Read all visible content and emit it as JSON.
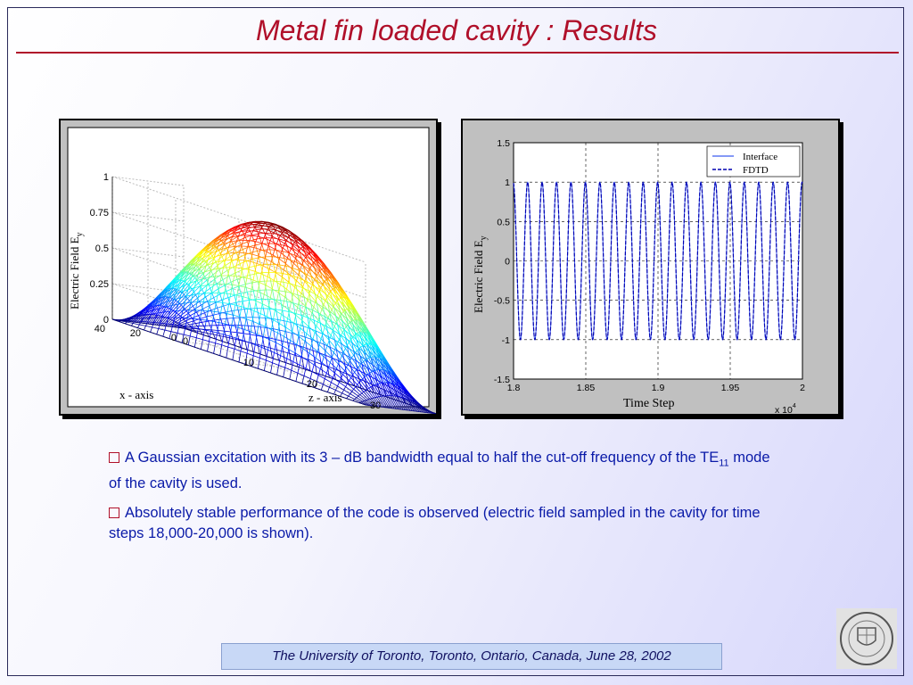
{
  "slide": {
    "title": "Metal fin loaded cavity : Results",
    "bullets": [
      {
        "text_before": "A Gaussian excitation with its 3 – dB bandwidth equal to half the cut-off frequency of the TE",
        "subscript": "11",
        "text_after": " mode of the cavity is used."
      },
      {
        "text_before": "Absolutely stable performance of the code is observed (electric field sampled in the cavity for time steps 18,000-20,000 is shown).",
        "subscript": "",
        "text_after": ""
      }
    ],
    "footer": "The University of Toronto, Toronto, Ontario, Canada, June 28, 2002"
  },
  "chart_data": [
    {
      "type": "surface",
      "ylabel": "Electric Field E",
      "ylabel_sub": "y",
      "xlabel": "x - axis",
      "zlabel": "z - axis",
      "y_ticks": [
        "0",
        "0.25",
        "0.5",
        "0.75",
        "1"
      ],
      "x_ticks": [
        "0",
        "20",
        "40"
      ],
      "z_ticks": [
        "0",
        "10",
        "20",
        "30",
        "40"
      ],
      "ylim": [
        0,
        1
      ],
      "x_range": [
        0,
        40
      ],
      "z_range": [
        0,
        40
      ],
      "peak": 1,
      "colormap": "jet"
    },
    {
      "type": "line",
      "ylabel": "Electric Field E",
      "ylabel_sub": "y",
      "xlabel": "Time Step",
      "x_multiplier": "x 10",
      "x_multiplier_exp": "4",
      "x_ticks": [
        "1.8",
        "1.85",
        "1.9",
        "1.95",
        "2"
      ],
      "y_ticks": [
        "1.5",
        "1",
        "0.5",
        "0",
        "-0.5",
        "-1",
        "-1.5"
      ],
      "xlim": [
        1.8,
        2.0
      ],
      "ylim": [
        -1.5,
        1.5
      ],
      "grid": true,
      "legend_placement": "top-right",
      "series": [
        {
          "name": "Interface",
          "style": "solid",
          "color": "#3c5cf0",
          "amplitude": 1,
          "cycles": 20
        },
        {
          "name": "FDTD",
          "style": "dashed",
          "color": "#0000b0",
          "amplitude": 1,
          "cycles": 20
        }
      ]
    }
  ]
}
